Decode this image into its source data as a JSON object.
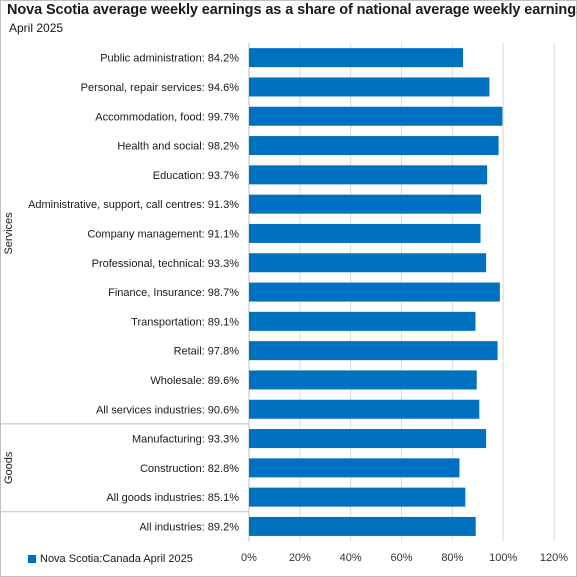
{
  "chart_data": {
    "type": "bar",
    "orientation": "horizontal",
    "title": "Nova Scotia average weekly earnings as a share of national average weekly earnings",
    "subtitle": "April 2025",
    "bar_color": "#0070c0",
    "categories": [
      "Public administration: 84.2%",
      "Personal, repair services: 94.6%",
      "Accommodation, food: 99.7%",
      "Health and social: 98.2%",
      "Education: 93.7%",
      "Administrative, support, call centres: 91.3%",
      "Company management: 91.1%",
      "Professional, technical: 93.3%",
      "Finance, Insurance: 98.7%",
      "Transportation: 89.1%",
      "Retail: 97.8%",
      "Wholesale: 89.6%",
      "All services industries: 90.6%",
      "Manufacturing: 93.3%",
      "Construction: 82.8%",
      "All goods industries: 85.1%",
      "All industries: 89.2%"
    ],
    "series": [
      {
        "name": "Nova Scotia:Canada April 2025",
        "values": [
          84.2,
          94.6,
          99.7,
          98.2,
          93.7,
          91.3,
          91.1,
          93.3,
          98.7,
          89.1,
          97.8,
          89.6,
          90.6,
          93.3,
          82.8,
          85.1,
          89.2
        ]
      }
    ],
    "groups": [
      {
        "name": "Services",
        "from": 0,
        "to": 12
      },
      {
        "name": "Goods",
        "from": 13,
        "to": 15
      },
      {
        "name": "",
        "from": 16,
        "to": 16
      }
    ],
    "xlim": [
      0,
      120
    ],
    "xticks": [
      0,
      20,
      40,
      60,
      80,
      100,
      120
    ],
    "xtick_labels": [
      "0%",
      "20%",
      "40%",
      "60%",
      "80%",
      "100%",
      "120%"
    ],
    "grid": true,
    "legend": {
      "position": "bottom-left",
      "label": "Nova Scotia:Canada April 2025"
    }
  }
}
